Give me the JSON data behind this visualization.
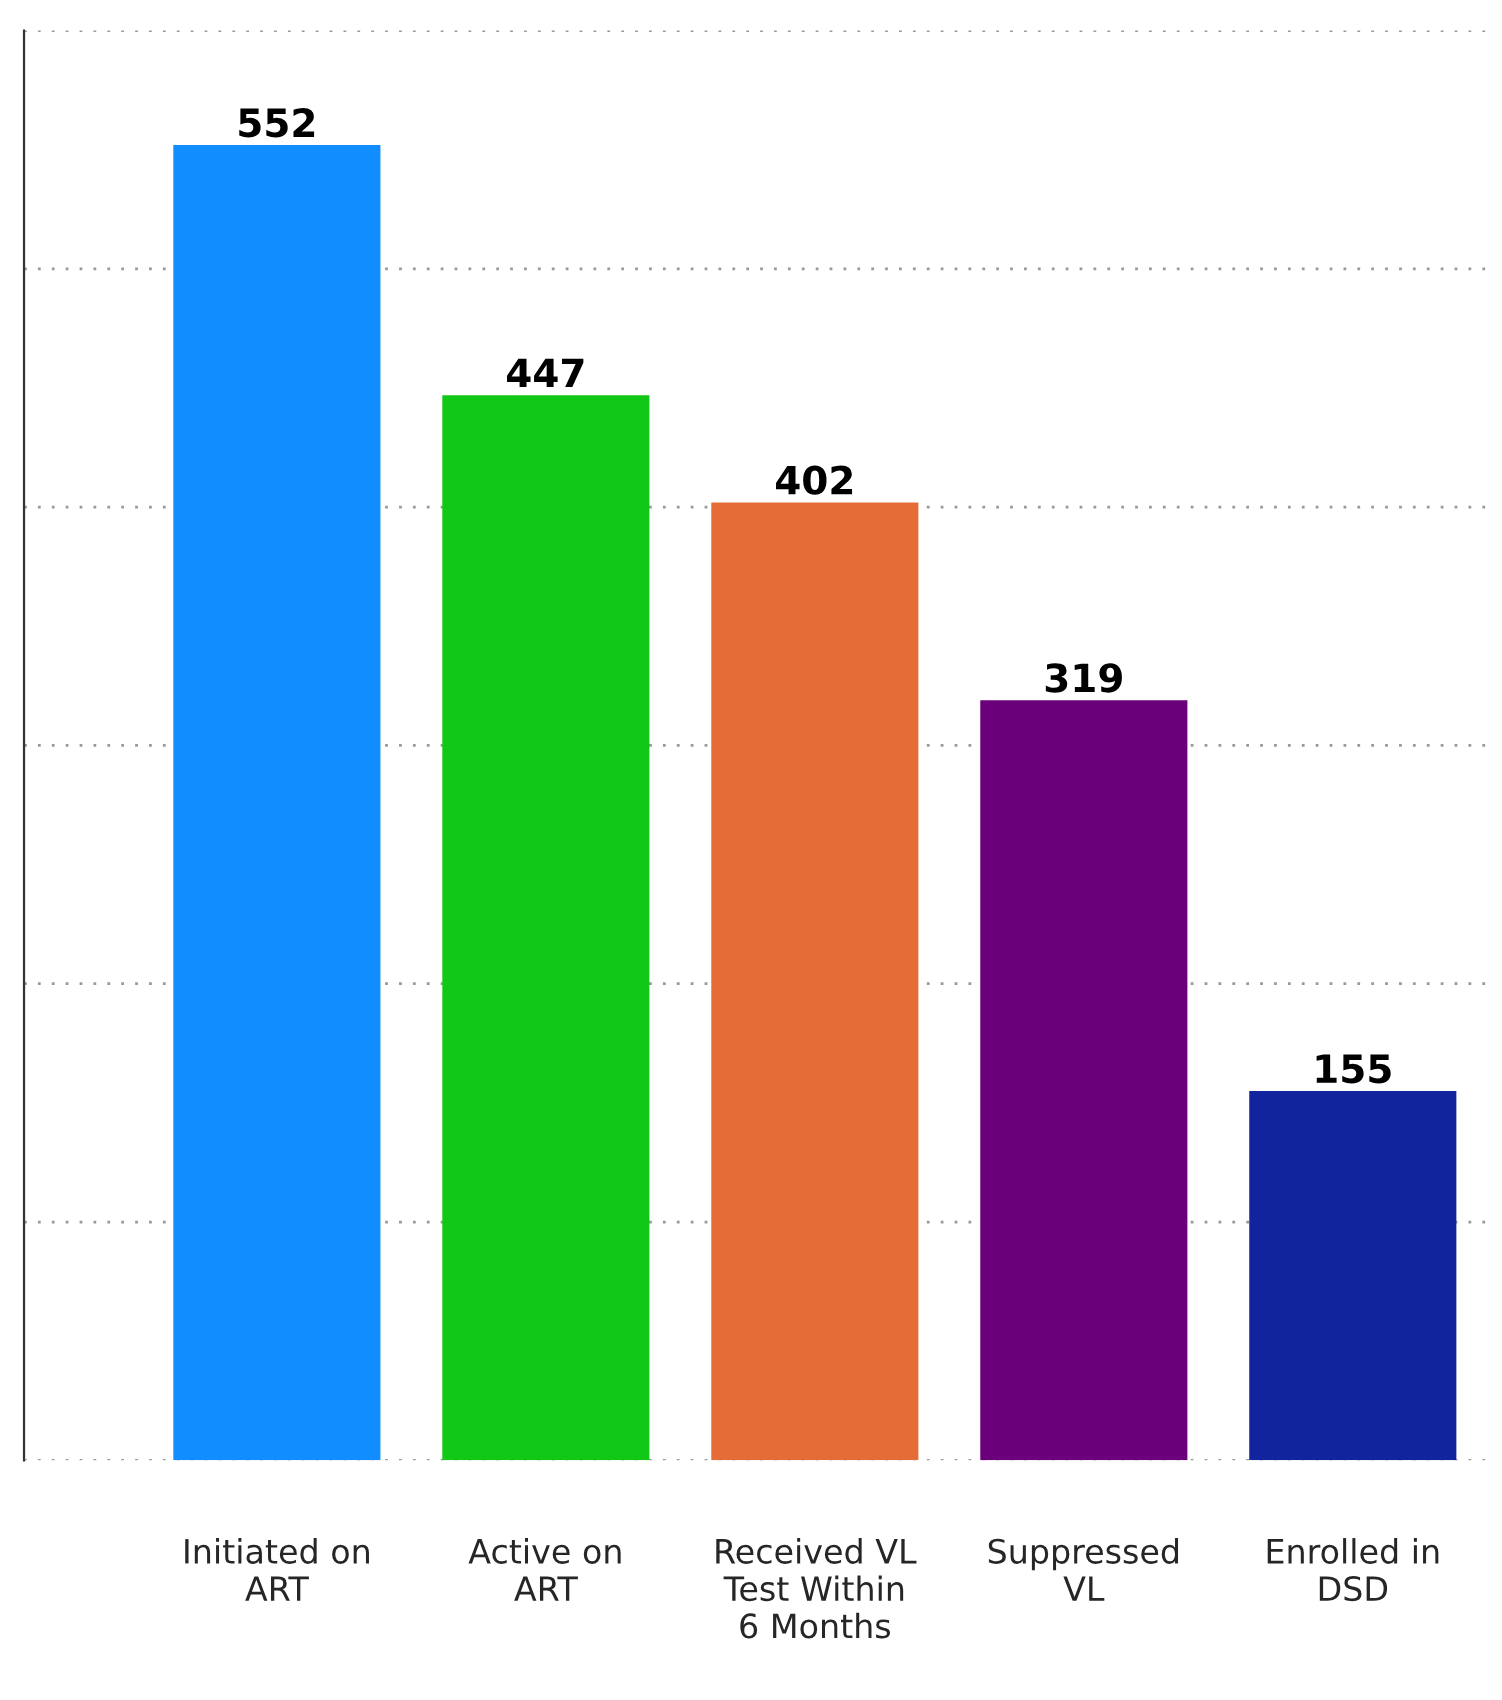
{
  "chart_data": {
    "type": "bar",
    "categories": [
      "Initiated on ART",
      "Active on ART",
      "Received VL Test Within 6 Months",
      "Suppressed VL",
      "Enrolled in DSD"
    ],
    "values": [
      552,
      447,
      402,
      319,
      155
    ],
    "colors": [
      "#118dff",
      "#12c817",
      "#e66c37",
      "#6b007b",
      "#12239e"
    ],
    "ylim": [
      0,
      600
    ],
    "yticks": [
      {
        "value": 0,
        "label": null
      },
      {
        "value": 100,
        "label": null
      },
      {
        "value": 200,
        "label": null
      },
      {
        "value": 300,
        "label": null
      },
      {
        "value": 400,
        "label": null
      },
      {
        "value": 500,
        "label": null
      },
      {
        "value": 600,
        "label": null
      }
    ],
    "grid": "y",
    "data_labels": true,
    "tick_labels": "x"
  }
}
